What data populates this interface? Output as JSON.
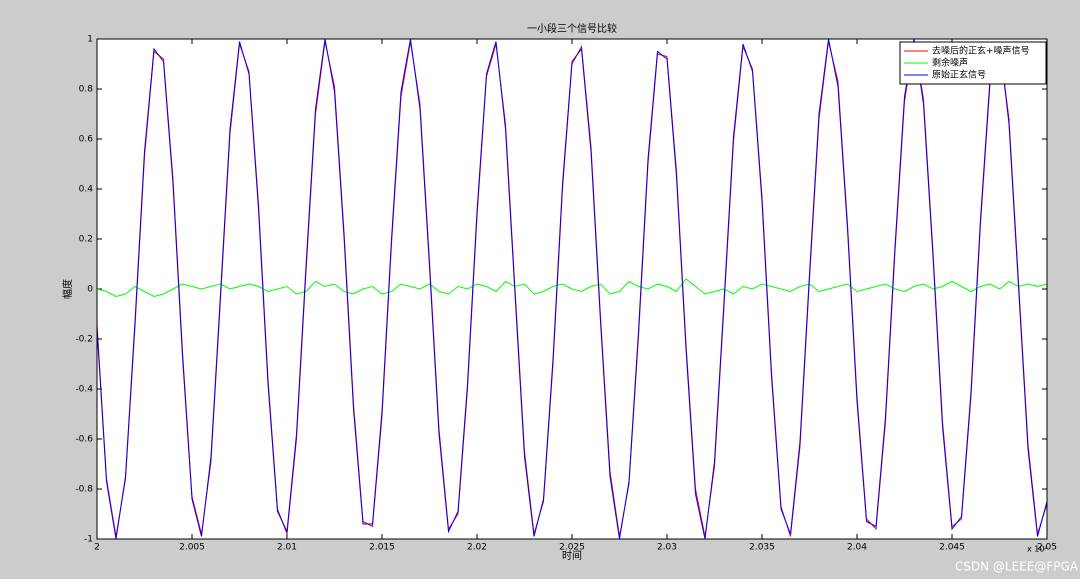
{
  "chart_data": {
    "type": "line",
    "title": "一小段三个信号比较",
    "x_label": "时间",
    "y_label": "幅度",
    "x_multiplier": "x 10⁴",
    "watermark": "CSDN @LEEE@FPGA",
    "xlim": [
      2,
      2.05
    ],
    "xticks": [
      2,
      2.005,
      2.01,
      2.015,
      2.02,
      2.025,
      2.03,
      2.035,
      2.04,
      2.045,
      2.05
    ],
    "ylim": [
      -1,
      1
    ],
    "yticks": [
      -1,
      -0.8,
      -0.6,
      -0.4,
      -0.2,
      0,
      0.2,
      0.4,
      0.6,
      0.8,
      1
    ],
    "legend": "top-right",
    "x": [
      2,
      2.0005,
      2.001,
      2.0015,
      2.002,
      2.0025,
      2.003,
      2.0035,
      2.004,
      2.0045,
      2.005,
      2.0055,
      2.006,
      2.0065,
      2.007,
      2.0075,
      2.008,
      2.0085,
      2.009,
      2.0095,
      2.01,
      2.0105,
      2.011,
      2.0115,
      2.012,
      2.0125,
      2.013,
      2.0135,
      2.014,
      2.0145,
      2.015,
      2.0155,
      2.016,
      2.0165,
      2.017,
      2.0175,
      2.018,
      2.0185,
      2.019,
      2.0195,
      2.02,
      2.0205,
      2.021,
      2.0215,
      2.022,
      2.0225,
      2.023,
      2.0235,
      2.024,
      2.0245,
      2.025,
      2.0255,
      2.026,
      2.0265,
      2.027,
      2.0275,
      2.028,
      2.0285,
      2.029,
      2.0295,
      2.03,
      2.0305,
      2.031,
      2.0315,
      2.032,
      2.0325,
      2.033,
      2.0335,
      2.034,
      2.0345,
      2.035,
      2.0355,
      2.036,
      2.0365,
      2.037,
      2.0375,
      2.038,
      2.0385,
      2.039,
      2.0395,
      2.04,
      2.0405,
      2.041,
      2.0415,
      2.042,
      2.0425,
      2.043,
      2.0435,
      2.044,
      2.0445,
      2.045,
      2.0455,
      2.046,
      2.0465,
      2.047,
      2.0475,
      2.048,
      2.0485,
      2.049,
      2.0495,
      2.05
    ],
    "series": [
      {
        "name": "去噪后的正玄+噪声信号",
        "color": "#ff0000",
        "values": [
          -0.14,
          -0.76,
          -0.99,
          -0.76,
          -0.15,
          0.53,
          0.95,
          0.92,
          0.44,
          -0.25,
          -0.83,
          -0.98,
          -0.69,
          -0.04,
          0.62,
          0.98,
          0.87,
          0.34,
          -0.36,
          -0.88,
          -0.98,
          -0.6,
          0.07,
          0.7,
          0.99,
          0.81,
          0.23,
          -0.46,
          -0.93,
          -0.95,
          -0.51,
          0.18,
          0.77,
          0.99,
          0.74,
          0.11,
          -0.56,
          -0.96,
          -0.9,
          -0.4,
          0.29,
          0.85,
          0.98,
          0.66,
          0,
          -0.65,
          -0.98,
          -0.85,
          -0.3,
          0.4,
          0.9,
          0.97,
          0.57,
          -0.11,
          -0.73,
          -0.99,
          -0.78,
          -0.19,
          0.5,
          0.94,
          0.93,
          0.47,
          -0.22,
          -0.8,
          -0.99,
          -0.71,
          -0.07,
          0.59,
          0.97,
          0.88,
          0.37,
          -0.33,
          -0.87,
          -0.99,
          -0.63,
          0.04,
          0.68,
          0.99,
          0.83,
          0.26,
          -0.43,
          -0.92,
          -0.96,
          -0.53,
          0.15,
          0.75,
          0.99,
          0.76,
          0.15,
          -0.53,
          -0.95,
          -0.92,
          -0.43,
          0.26,
          0.82,
          0.98,
          0.68,
          0.03,
          -0.62,
          -0.98,
          -0.86
        ]
      },
      {
        "name": "剩余噪声",
        "color": "#00ff00",
        "values": [
          0,
          -0.01,
          -0.03,
          -0.02,
          0.01,
          -0.01,
          -0.03,
          -0.02,
          0,
          0.02,
          0.01,
          0,
          0.01,
          0.02,
          0,
          0.01,
          0.02,
          0.01,
          -0.01,
          0,
          0.01,
          -0.02,
          -0.01,
          0.03,
          0.01,
          0.02,
          -0.01,
          -0.02,
          0,
          0.01,
          -0.02,
          -0.01,
          0.02,
          0.01,
          0,
          0.02,
          -0.01,
          -0.02,
          0.01,
          0,
          0.02,
          0.01,
          -0.01,
          0.03,
          0.01,
          0.02,
          -0.02,
          -0.01,
          0.01,
          0.02,
          0,
          -0.01,
          0.01,
          0.02,
          -0.02,
          -0.01,
          0.03,
          0.01,
          0,
          0.02,
          0.01,
          -0.01,
          0.04,
          0.01,
          -0.02,
          -0.01,
          0,
          -0.02,
          0.01,
          0,
          0.02,
          0.01,
          0,
          -0.01,
          0.01,
          0.02,
          -0.01,
          0,
          0.01,
          0.02,
          -0.01,
          0,
          0.01,
          0.02,
          0,
          -0.01,
          0.01,
          0.02,
          0,
          0.01,
          0.03,
          0.01,
          -0.01,
          0.01,
          0.02,
          0,
          0.03,
          0.01,
          0.02,
          0.01,
          0.02
        ]
      },
      {
        "name": "原始正玄信号",
        "color": "#0000ff",
        "values": [
          -0.16,
          -0.77,
          -1,
          -0.75,
          -0.13,
          0.55,
          0.96,
          0.91,
          0.42,
          -0.27,
          -0.84,
          -0.99,
          -0.67,
          -0.02,
          0.64,
          0.99,
          0.86,
          0.32,
          -0.38,
          -0.89,
          -0.97,
          -0.58,
          0.09,
          0.72,
          1,
          0.79,
          0.21,
          -0.48,
          -0.94,
          -0.94,
          -0.49,
          0.2,
          0.79,
          1,
          0.72,
          0.09,
          -0.58,
          -0.97,
          -0.89,
          -0.38,
          0.31,
          0.86,
          0.99,
          0.64,
          -0.02,
          -0.67,
          -0.99,
          -0.84,
          -0.28,
          0.42,
          0.91,
          0.96,
          0.55,
          -0.13,
          -0.75,
          -1,
          -0.77,
          -0.17,
          0.52,
          0.95,
          0.92,
          0.45,
          -0.24,
          -0.82,
          -1,
          -0.69,
          -0.05,
          0.61,
          0.98,
          0.87,
          0.35,
          -0.35,
          -0.88,
          -0.98,
          -0.61,
          0.06,
          0.7,
          1,
          0.81,
          0.24,
          -0.45,
          -0.93,
          -0.95,
          -0.51,
          0.17,
          0.77,
          1,
          0.74,
          0.13,
          -0.55,
          -0.96,
          -0.91,
          -0.41,
          0.28,
          0.84,
          0.99,
          0.66,
          0.01,
          -0.64,
          -0.99,
          -0.85
        ]
      }
    ]
  }
}
